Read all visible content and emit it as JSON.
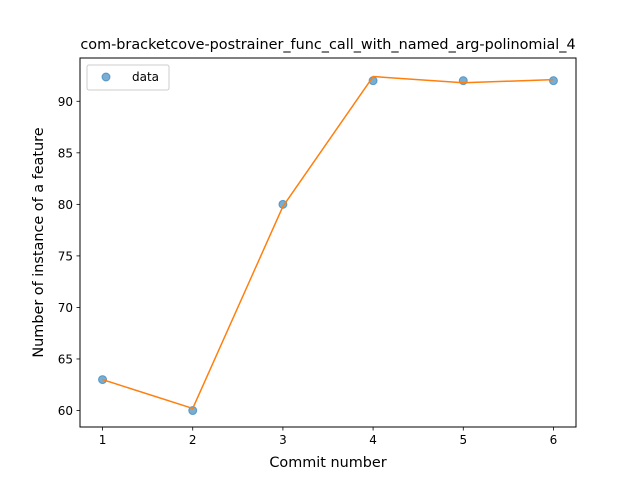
{
  "chart_data": {
    "type": "scatter",
    "title": "com-bracketcove-postrainer_func_call_with_named_arg-polinomial_4",
    "xlabel": "Commit number",
    "ylabel": "Number of instance of a feature",
    "xlim": [
      0.75,
      6.25
    ],
    "ylim": [
      58.4,
      94.2
    ],
    "xticks": [
      1,
      2,
      3,
      4,
      5,
      6
    ],
    "yticks": [
      60,
      65,
      70,
      75,
      80,
      85,
      90
    ],
    "grid": false,
    "legend_position": "upper-left",
    "series": [
      {
        "name": "data",
        "kind": "scatter",
        "color": "#1f77b4",
        "x": [
          1,
          2,
          3,
          4,
          5,
          6
        ],
        "y": [
          63,
          60,
          80,
          92,
          92,
          92
        ]
      },
      {
        "kind": "line",
        "color": "#ff7f0e",
        "x": [
          1,
          2,
          3,
          4,
          5,
          6
        ],
        "y": [
          63.0,
          60.2,
          79.8,
          92.4,
          91.8,
          92.1
        ]
      }
    ]
  }
}
